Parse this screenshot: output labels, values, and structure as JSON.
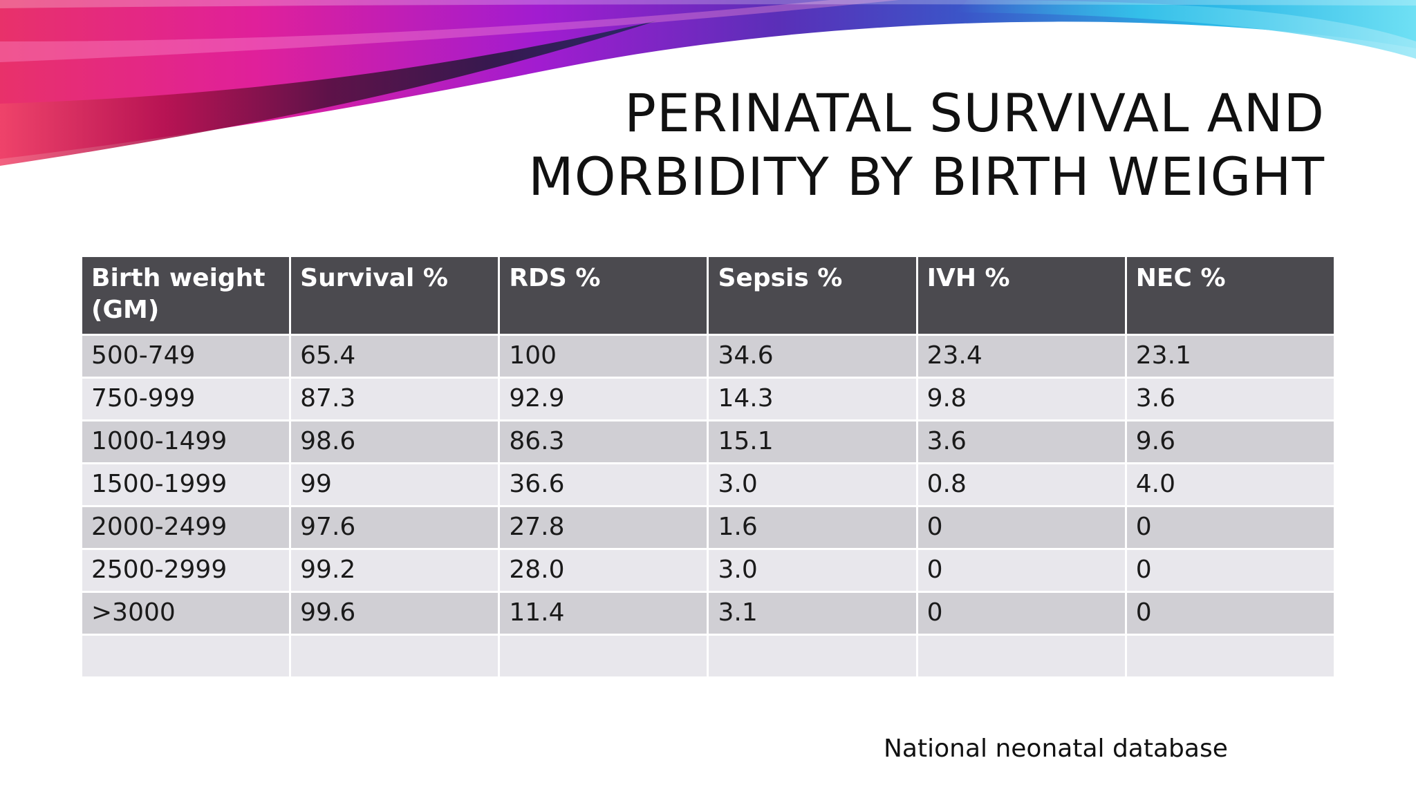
{
  "slide": {
    "title_line1": "PERINATAL SURVIVAL AND",
    "title_line2": "MORBIDITY BY BIRTH WEIGHT",
    "source": "National neonatal database",
    "colors": {
      "header_bg": "#4b4a4f",
      "row_dark": "#d0cfd4",
      "row_light": "#e8e7ec",
      "swoosh_pink": "#e0209a",
      "swoosh_cyan": "#29c6e8"
    }
  },
  "table": {
    "headers": [
      [
        "Birth weight",
        "(GM)"
      ],
      [
        "Survival %"
      ],
      [
        "RDS %"
      ],
      [
        "Sepsis %"
      ],
      [
        "IVH %"
      ],
      [
        "NEC %"
      ]
    ],
    "rows": [
      [
        "500-749",
        "65.4",
        "100",
        "34.6",
        "23.4",
        "23.1"
      ],
      [
        "750-999",
        "87.3",
        "92.9",
        "14.3",
        "9.8",
        "3.6"
      ],
      [
        "1000-1499",
        "98.6",
        "86.3",
        "15.1",
        "3.6",
        "9.6"
      ],
      [
        "1500-1999",
        "99",
        "36.6",
        "3.0",
        "0.8",
        "4.0"
      ],
      [
        "2000-2499",
        "97.6",
        "27.8",
        "1.6",
        "0",
        "0"
      ],
      [
        "2500-2999",
        "99.2",
        "28.0",
        "3.0",
        "0",
        "0"
      ],
      [
        ">3000",
        "99.6",
        "11.4",
        "3.1",
        "0",
        "0"
      ],
      [
        "",
        "",
        "",
        "",
        "",
        ""
      ]
    ]
  }
}
